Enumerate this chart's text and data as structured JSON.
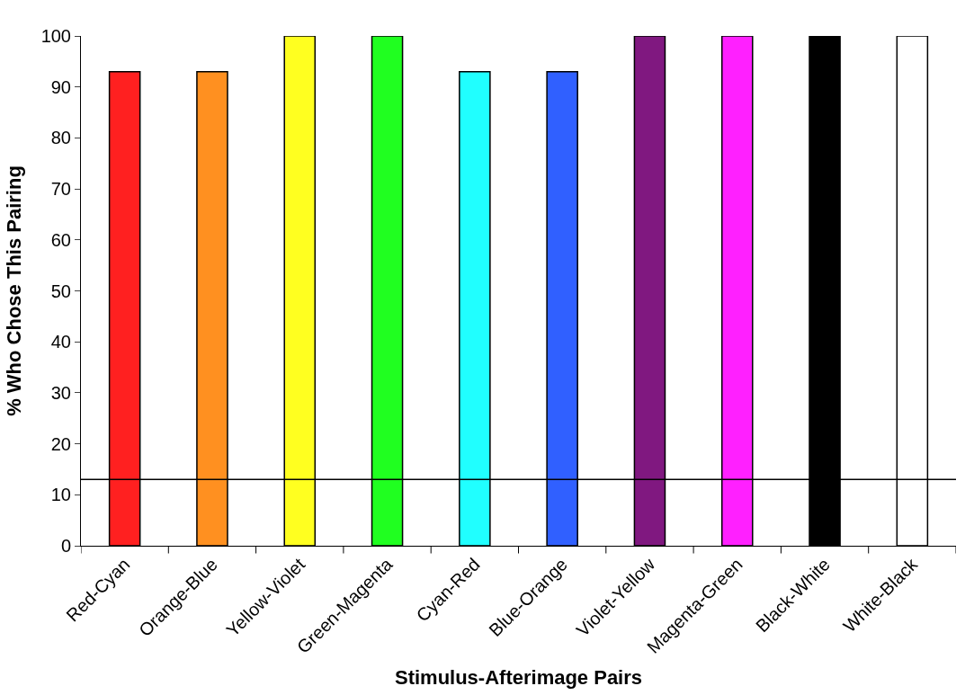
{
  "chart_data": {
    "type": "bar",
    "xlabel": "Stimulus-Afterimage Pairs",
    "ylabel": "% Who Chose This Pairing",
    "categories": [
      "Red-Cyan",
      "Orange-Blue",
      "Yellow-Violet",
      "Green-Magenta",
      "Cyan-Red",
      "Blue-Orange",
      "Violet-Yellow",
      "Magenta-Green",
      "Black-White",
      "White-Black"
    ],
    "values": [
      93,
      93,
      100,
      100,
      93,
      93,
      100,
      100,
      100,
      100
    ],
    "colors": [
      "#ff2020",
      "#ff9020",
      "#ffff20",
      "#20ff20",
      "#20ffff",
      "#3060ff",
      "#801880",
      "#ff20ff",
      "#000000",
      "#ffffff"
    ],
    "ylim": [
      0,
      100
    ],
    "yticks": [
      0,
      10,
      20,
      30,
      40,
      50,
      60,
      70,
      80,
      90,
      100
    ],
    "ref_lines": [
      {
        "axis": "y",
        "value": 13,
        "color": "#000000"
      }
    ]
  }
}
